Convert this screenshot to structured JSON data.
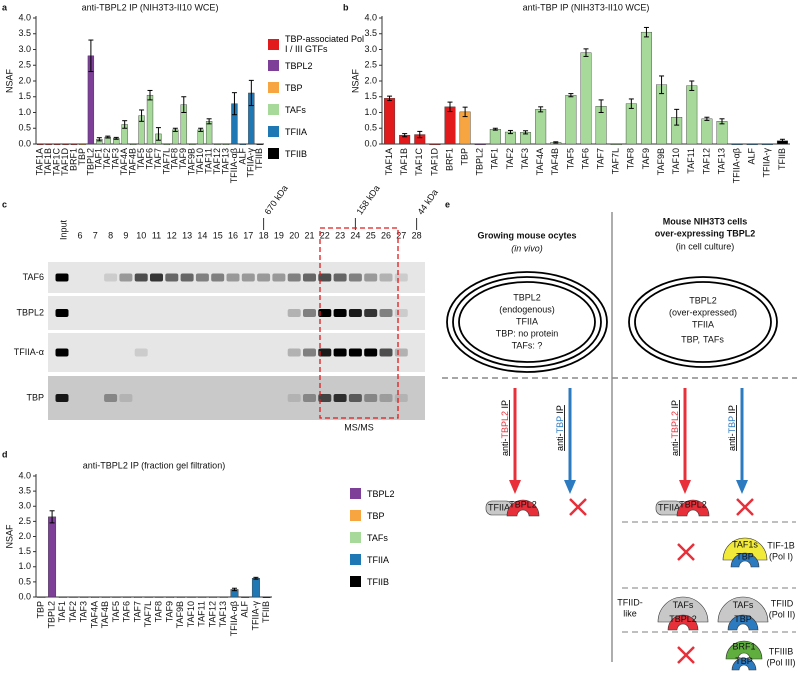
{
  "chart_data": [
    {
      "type": "bar",
      "label": "a",
      "title": "anti-TBPL2 IP (NIH3T3-II10 WCE)",
      "y_label": "NSAF",
      "categories": [
        "TAF1A",
        "TAF1B",
        "TAF1C",
        "TAF1D",
        "BRF1",
        "TBP",
        "TBPL2",
        "TAF1",
        "TAF2",
        "TAF3",
        "TAF4A",
        "TAF4B",
        "TAF5",
        "TAF6",
        "TAF7",
        "TAF7L",
        "TAF8",
        "TAF9",
        "TAF9B",
        "TAF10",
        "TAF11",
        "TAF12",
        "TAF13",
        "TFIIA-αβ",
        "ALF",
        "TFIIA-γ",
        "TFIIB"
      ],
      "values": [
        0,
        0,
        0,
        0,
        0,
        0,
        2.8,
        0.15,
        0.22,
        0.18,
        0.62,
        0,
        0.9,
        1.55,
        0.32,
        0,
        0.45,
        1.25,
        0,
        0.45,
        0.72,
        0,
        0,
        1.28,
        0,
        1.62,
        0
      ],
      "errors": [
        null,
        null,
        null,
        null,
        null,
        null,
        0.5,
        0.05,
        0.03,
        0.03,
        0.12,
        null,
        0.18,
        0.15,
        0.2,
        null,
        0.05,
        0.25,
        null,
        0.05,
        0.08,
        null,
        null,
        0.35,
        null,
        0.4,
        null
      ],
      "colors": [
        "#e31a1c",
        "#e31a1c",
        "#e31a1c",
        "#e31a1c",
        "#e31a1c",
        "#f7a541",
        "#7d3f98",
        "#a6d99a",
        "#a6d99a",
        "#a6d99a",
        "#a6d99a",
        "#a6d99a",
        "#a6d99a",
        "#a6d99a",
        "#a6d99a",
        "#a6d99a",
        "#a6d99a",
        "#a6d99a",
        "#a6d99a",
        "#a6d99a",
        "#a6d99a",
        "#a6d99a",
        "#a6d99a",
        "#1f78b4",
        "#1f78b4",
        "#1f78b4",
        "#000000"
      ],
      "ylim": [
        0,
        4
      ],
      "yticks": [
        {
          "value": 0,
          "label": "0.0"
        },
        0.5,
        {
          "value": 1,
          "label": "1.0"
        },
        1.5,
        {
          "value": 2,
          "label": "2.0"
        },
        2.5,
        {
          "value": 3,
          "label": "3.0"
        },
        3.5,
        {
          "value": 4,
          "label": "4.0"
        }
      ]
    },
    {
      "type": "bar",
      "label": "b",
      "title": "anti-TBP IP (NIH3T3-II10 WCE)",
      "y_label": "NSAF",
      "categories": [
        "TAF1A",
        "TAF1B",
        "TAF1C",
        "TAF1D",
        "BRF1",
        "TBP",
        "TBPL2",
        "TAF1",
        "TAF2",
        "TAF3",
        "TAF4A",
        "TAF4B",
        "TAF5",
        "TAF6",
        "TAF7",
        "TAF7L",
        "TAF8",
        "TAF9",
        "TAF9B",
        "TAF10",
        "TAF11",
        "TAF12",
        "TAF13",
        "TFIIA-αβ",
        "ALF",
        "TFIIA-γ",
        "TFIIB"
      ],
      "values": [
        1.45,
        0.28,
        0.3,
        0,
        1.18,
        1.02,
        0,
        0.47,
        0.38,
        0.37,
        1.1,
        0.05,
        1.55,
        2.9,
        1.2,
        0,
        1.28,
        3.55,
        1.88,
        0.85,
        1.85,
        0.8,
        0.72,
        0,
        0,
        0,
        0.1
      ],
      "errors": [
        0.07,
        0.05,
        0.1,
        null,
        0.15,
        0.15,
        null,
        0.03,
        0.05,
        0.05,
        0.08,
        0.02,
        0.05,
        0.12,
        0.2,
        null,
        0.15,
        0.15,
        0.28,
        0.25,
        0.15,
        0.05,
        0.08,
        null,
        null,
        null,
        0.05
      ],
      "colors": [
        "#e31a1c",
        "#e31a1c",
        "#e31a1c",
        "#e31a1c",
        "#e31a1c",
        "#f7a541",
        "#7d3f98",
        "#a6d99a",
        "#a6d99a",
        "#a6d99a",
        "#a6d99a",
        "#a6d99a",
        "#a6d99a",
        "#a6d99a",
        "#a6d99a",
        "#a6d99a",
        "#a6d99a",
        "#a6d99a",
        "#a6d99a",
        "#a6d99a",
        "#a6d99a",
        "#a6d99a",
        "#a6d99a",
        "#1f78b4",
        "#1f78b4",
        "#1f78b4",
        "#000000"
      ],
      "ylim": [
        0,
        4
      ],
      "yticks": [
        {
          "value": 0,
          "label": "0.0"
        },
        0.5,
        {
          "value": 1,
          "label": "1.0"
        },
        1.5,
        {
          "value": 2,
          "label": "2.0"
        },
        2.5,
        {
          "value": 3,
          "label": "3.0"
        },
        3.5,
        {
          "value": 4,
          "label": "4.0"
        }
      ],
      "legend": [
        {
          "name": "TBP-associated Pol I / III GTFs",
          "color": "#e31a1c"
        },
        {
          "name": "TBPL2",
          "color": "#7d3f98"
        },
        {
          "name": "TBP",
          "color": "#f7a541"
        },
        {
          "name": "TAFs",
          "color": "#a6d99a"
        },
        {
          "name": "TFIIA",
          "color": "#1f78b4"
        },
        {
          "name": "TFIIB",
          "color": "#000000"
        }
      ]
    },
    {
      "type": "bar",
      "label": "d",
      "title": "anti-TBPL2 IP (fraction gel filtration)",
      "y_label": "NSAF",
      "categories": [
        "TBP",
        "TBPL2",
        "TAF1",
        "TAF2",
        "TAF3",
        "TAF4A",
        "TAF4B",
        "TAF5",
        "TAF6",
        "TAF7",
        "TAF7L",
        "TAF8",
        "TAF9",
        "TAF9B",
        "TAF10",
        "TAF11",
        "TAF12",
        "TAF13",
        "TFIIA-αβ",
        "ALF",
        "TFIIA-γ",
        "TFIIB"
      ],
      "values": [
        0,
        2.65,
        0,
        0,
        0,
        0,
        0,
        0,
        0,
        0,
        0,
        0,
        0,
        0,
        0,
        0,
        0,
        0,
        0.25,
        0,
        0.62,
        0
      ],
      "errors": [
        null,
        0.2,
        null,
        null,
        null,
        null,
        null,
        null,
        null,
        null,
        null,
        null,
        null,
        null,
        null,
        null,
        null,
        null,
        0.04,
        null,
        0.03,
        null
      ],
      "colors": [
        "#f7a541",
        "#7d3f98",
        "#a6d99a",
        "#a6d99a",
        "#a6d99a",
        "#a6d99a",
        "#a6d99a",
        "#a6d99a",
        "#a6d99a",
        "#a6d99a",
        "#a6d99a",
        "#a6d99a",
        "#a6d99a",
        "#a6d99a",
        "#a6d99a",
        "#a6d99a",
        "#a6d99a",
        "#a6d99a",
        "#1f78b4",
        "#1f78b4",
        "#1f78b4",
        "#000000"
      ],
      "ylim": [
        0,
        4
      ],
      "yticks": [
        {
          "value": 0,
          "label": "0.0"
        },
        0.5,
        {
          "value": 1,
          "label": "1.0"
        },
        1.5,
        {
          "value": 2,
          "label": "2.0"
        },
        2.5,
        {
          "value": 3,
          "label": "3.0"
        },
        3.5,
        {
          "value": 4,
          "label": "4.0"
        }
      ],
      "legend": [
        {
          "name": "TBPL2",
          "color": "#7d3f98"
        },
        {
          "name": "TBP",
          "color": "#f7a541"
        },
        {
          "name": "TAFs",
          "color": "#a6d99a"
        },
        {
          "name": "TFIIA",
          "color": "#1f78b4"
        },
        {
          "name": "TFIIB",
          "color": "#000000"
        }
      ]
    }
  ],
  "panel_c": {
    "label": "c",
    "lanes": [
      "Input",
      "6",
      "7",
      "8",
      "9",
      "10",
      "11",
      "12",
      "13",
      "14",
      "15",
      "16",
      "17",
      "18",
      "19",
      "20",
      "21",
      "22",
      "23",
      "24",
      "25",
      "26",
      "27",
      "28"
    ],
    "markers": [
      "670 kDa",
      "158 kDa",
      "44 kDa"
    ],
    "rows": [
      "TAF6",
      "TBPL2",
      "TFIIA-α",
      "TBP"
    ],
    "box_label": "MS/MS"
  },
  "panel_e": {
    "label": "e",
    "left": {
      "title_lines": [
        "Growing mouse ocytes"
      ],
      "subtitle": "(in vivo)",
      "oval": [
        "TBPL2",
        "(endogenous)",
        "TFIIA",
        "TBP: no protein",
        "TAFs: ?"
      ]
    },
    "right": {
      "title_lines": [
        "Mouse NIH3T3 cells",
        "over-expressing TBPL2"
      ],
      "subtitle": "(in cell culture)",
      "oval": [
        "TBPL2",
        "(over-expressed)",
        "TFIIA",
        "TBP,",
        "TAFs"
      ]
    },
    "arrows": [
      [
        "anti-",
        "TBPL2",
        " IP"
      ],
      [
        "anti-",
        "TBP",
        " IP"
      ],
      [
        "anti-",
        "TBPL2",
        " IP"
      ],
      [
        "anti-",
        "TBP",
        " IP"
      ]
    ],
    "complexes": [
      {
        "parts": [
          "TFIIA",
          "TBPL2"
        ]
      },
      {
        "parts": [
          "TFIIA",
          "TBPL2"
        ]
      },
      {
        "parts": [
          "TAF1s",
          "TBP"
        ],
        "name": [
          "TIF-1B",
          "(Pol I)"
        ]
      },
      {
        "parts": [
          "TAFs",
          "TBPL2"
        ],
        "name": [
          "TFIID-",
          "like"
        ]
      },
      {
        "parts": [
          "TAFs",
          "TBP"
        ],
        "name": [
          "TFIID",
          "(Pol II)"
        ]
      },
      {
        "parts": [
          "BRF1",
          "TBP"
        ],
        "name": [
          "TFIIIB",
          "(Pol III)"
        ]
      }
    ]
  }
}
